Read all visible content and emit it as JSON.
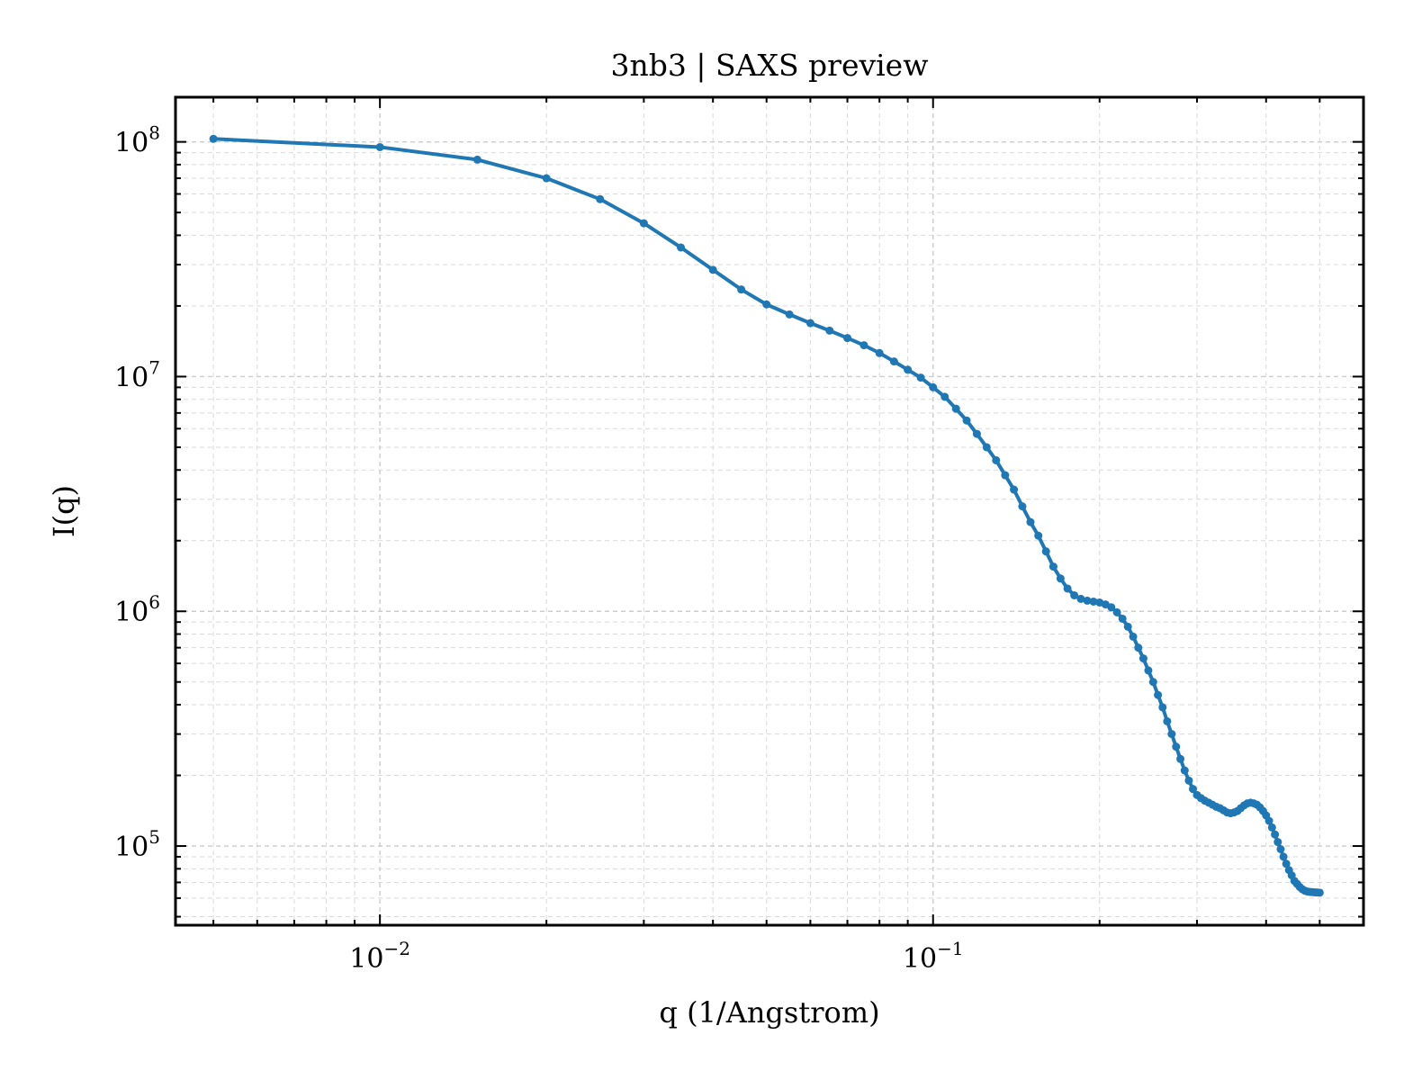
{
  "chart_data": {
    "type": "line",
    "title": "3nb3 | SAXS preview",
    "xlabel": "q (1/Angstrom)",
    "ylabel": "I(q)",
    "xscale": "log",
    "yscale": "log",
    "xlim": [
      0.00427,
      0.6
    ],
    "ylim": [
      46000,
      155000000
    ],
    "grid": true,
    "legend": "none",
    "x_ticks": [
      {
        "value": 0.01,
        "base": "10",
        "exp": "−2"
      },
      {
        "value": 0.1,
        "base": "10",
        "exp": "−1"
      }
    ],
    "y_ticks": [
      {
        "value": 100000,
        "base": "10",
        "exp": "5"
      },
      {
        "value": 1000000,
        "base": "10",
        "exp": "6"
      },
      {
        "value": 10000000,
        "base": "10",
        "exp": "7"
      },
      {
        "value": 100000000,
        "base": "10",
        "exp": "8"
      }
    ],
    "series": [
      {
        "color": "#1f77b4",
        "x": [
          0.005,
          0.01,
          0.015,
          0.02,
          0.025,
          0.03,
          0.035,
          0.04,
          0.045,
          0.05,
          0.055,
          0.06,
          0.065,
          0.07,
          0.075,
          0.08,
          0.085,
          0.09,
          0.095,
          0.1,
          0.105,
          0.11,
          0.115,
          0.12,
          0.125,
          0.13,
          0.135,
          0.14,
          0.145,
          0.15,
          0.155,
          0.16,
          0.165,
          0.17,
          0.175,
          0.18,
          0.185,
          0.19,
          0.195,
          0.2,
          0.205,
          0.21,
          0.215,
          0.22,
          0.225,
          0.23,
          0.235,
          0.24,
          0.245,
          0.25,
          0.255,
          0.26,
          0.265,
          0.27,
          0.275,
          0.28,
          0.285,
          0.29,
          0.295,
          0.3,
          0.305,
          0.31,
          0.315,
          0.32,
          0.325,
          0.33,
          0.335,
          0.34,
          0.345,
          0.35,
          0.355,
          0.36,
          0.365,
          0.37,
          0.375,
          0.38,
          0.385,
          0.39,
          0.395,
          0.4,
          0.405,
          0.41,
          0.415,
          0.42,
          0.425,
          0.43,
          0.435,
          0.44,
          0.445,
          0.45,
          0.455,
          0.46,
          0.465,
          0.47,
          0.475,
          0.48,
          0.485,
          0.49,
          0.495,
          0.5
        ],
        "y": [
          103000000,
          95000000,
          84000000,
          70000000,
          57000000,
          45000000,
          35500000,
          28500000,
          23500000,
          20300000,
          18400000,
          16900000,
          15700000,
          14600000,
          13600000,
          12600000,
          11600000,
          10700000,
          9900000,
          9000000,
          8200000,
          7300000,
          6500000,
          5700000,
          5000000,
          4400000,
          3800000,
          3300000,
          2800000,
          2400000,
          2100000,
          1800000,
          1550000,
          1380000,
          1250000,
          1170000,
          1130000,
          1110000,
          1100000,
          1090000,
          1070000,
          1040000,
          990000,
          930000,
          860000,
          780000,
          700000,
          630000,
          560000,
          500000,
          440000,
          390000,
          340000,
          300000,
          265000,
          235000,
          210000,
          190000,
          175000,
          165000,
          160000,
          156000,
          153000,
          150000,
          147000,
          145000,
          142000,
          139000,
          138000,
          139000,
          141000,
          145000,
          149000,
          152000,
          153000,
          152000,
          150000,
          146000,
          141000,
          135000,
          128000,
          120000,
          112000,
          104000,
          97000,
          90000,
          84000,
          79000,
          75000,
          71000,
          69000,
          67000,
          65500,
          64500,
          64000,
          63800,
          63600,
          63500,
          63400,
          63300
        ]
      }
    ]
  }
}
